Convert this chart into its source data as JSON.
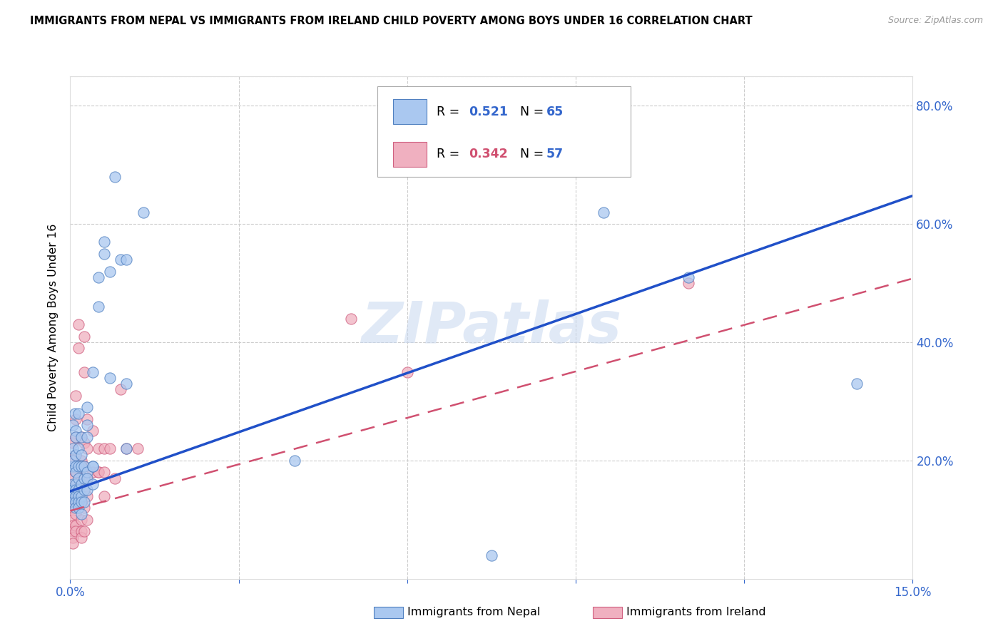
{
  "title": "IMMIGRANTS FROM NEPAL VS IMMIGRANTS FROM IRELAND CHILD POVERTY AMONG BOYS UNDER 16 CORRELATION CHART",
  "source": "Source: ZipAtlas.com",
  "ylabel": "Child Poverty Among Boys Under 16",
  "watermark": "ZIPatlas",
  "nepal_face_color": "#aac8f0",
  "nepal_edge_color": "#5080c0",
  "ireland_face_color": "#f0b0c0",
  "ireland_edge_color": "#d06080",
  "nepal_line_color": "#2050c8",
  "ireland_line_color": "#d05070",
  "legend_R_nepal": "0.521",
  "legend_N_nepal": "65",
  "legend_R_ireland": "0.342",
  "legend_N_ireland": "57",
  "text_color_blue": "#3366cc",
  "nepal_scatter": [
    [
      0.0005,
      0.22
    ],
    [
      0.0005,
      0.19
    ],
    [
      0.0005,
      0.26
    ],
    [
      0.0005,
      0.16
    ],
    [
      0.0005,
      0.15
    ],
    [
      0.0005,
      0.14
    ],
    [
      0.0005,
      0.13
    ],
    [
      0.0005,
      0.2
    ],
    [
      0.0008,
      0.28
    ],
    [
      0.001,
      0.25
    ],
    [
      0.001,
      0.24
    ],
    [
      0.001,
      0.21
    ],
    [
      0.001,
      0.19
    ],
    [
      0.001,
      0.18
    ],
    [
      0.001,
      0.16
    ],
    [
      0.001,
      0.15
    ],
    [
      0.001,
      0.14
    ],
    [
      0.001,
      0.13
    ],
    [
      0.001,
      0.12
    ],
    [
      0.0015,
      0.28
    ],
    [
      0.0015,
      0.22
    ],
    [
      0.0015,
      0.19
    ],
    [
      0.0015,
      0.17
    ],
    [
      0.0015,
      0.15
    ],
    [
      0.0015,
      0.14
    ],
    [
      0.0015,
      0.13
    ],
    [
      0.0015,
      0.12
    ],
    [
      0.002,
      0.24
    ],
    [
      0.002,
      0.21
    ],
    [
      0.002,
      0.19
    ],
    [
      0.002,
      0.16
    ],
    [
      0.002,
      0.14
    ],
    [
      0.002,
      0.13
    ],
    [
      0.002,
      0.11
    ],
    [
      0.0025,
      0.19
    ],
    [
      0.0025,
      0.17
    ],
    [
      0.0025,
      0.15
    ],
    [
      0.0025,
      0.13
    ],
    [
      0.003,
      0.18
    ],
    [
      0.003,
      0.15
    ],
    [
      0.003,
      0.17
    ],
    [
      0.003,
      0.26
    ],
    [
      0.003,
      0.29
    ],
    [
      0.003,
      0.24
    ],
    [
      0.004,
      0.19
    ],
    [
      0.004,
      0.16
    ],
    [
      0.004,
      0.35
    ],
    [
      0.004,
      0.19
    ],
    [
      0.005,
      0.51
    ],
    [
      0.005,
      0.46
    ],
    [
      0.006,
      0.55
    ],
    [
      0.006,
      0.57
    ],
    [
      0.007,
      0.52
    ],
    [
      0.007,
      0.34
    ],
    [
      0.008,
      0.68
    ],
    [
      0.009,
      0.54
    ],
    [
      0.01,
      0.54
    ],
    [
      0.01,
      0.33
    ],
    [
      0.01,
      0.22
    ],
    [
      0.013,
      0.62
    ],
    [
      0.04,
      0.2
    ],
    [
      0.075,
      0.04
    ],
    [
      0.095,
      0.62
    ],
    [
      0.11,
      0.51
    ],
    [
      0.14,
      0.33
    ]
  ],
  "ireland_scatter": [
    [
      0.0005,
      0.23
    ],
    [
      0.0005,
      0.2
    ],
    [
      0.0005,
      0.17
    ],
    [
      0.0005,
      0.14
    ],
    [
      0.0005,
      0.12
    ],
    [
      0.0005,
      0.1
    ],
    [
      0.0005,
      0.09
    ],
    [
      0.0005,
      0.08
    ],
    [
      0.0005,
      0.07
    ],
    [
      0.0005,
      0.06
    ],
    [
      0.001,
      0.31
    ],
    [
      0.001,
      0.27
    ],
    [
      0.001,
      0.24
    ],
    [
      0.001,
      0.21
    ],
    [
      0.001,
      0.18
    ],
    [
      0.001,
      0.15
    ],
    [
      0.001,
      0.13
    ],
    [
      0.001,
      0.11
    ],
    [
      0.001,
      0.09
    ],
    [
      0.001,
      0.08
    ],
    [
      0.0015,
      0.43
    ],
    [
      0.0015,
      0.39
    ],
    [
      0.002,
      0.24
    ],
    [
      0.002,
      0.2
    ],
    [
      0.002,
      0.17
    ],
    [
      0.002,
      0.13
    ],
    [
      0.002,
      0.1
    ],
    [
      0.002,
      0.08
    ],
    [
      0.002,
      0.07
    ],
    [
      0.0025,
      0.41
    ],
    [
      0.0025,
      0.35
    ],
    [
      0.0025,
      0.23
    ],
    [
      0.0025,
      0.19
    ],
    [
      0.0025,
      0.15
    ],
    [
      0.0025,
      0.12
    ],
    [
      0.0025,
      0.08
    ],
    [
      0.003,
      0.27
    ],
    [
      0.003,
      0.22
    ],
    [
      0.003,
      0.17
    ],
    [
      0.003,
      0.14
    ],
    [
      0.003,
      0.1
    ],
    [
      0.004,
      0.25
    ],
    [
      0.004,
      0.18
    ],
    [
      0.005,
      0.22
    ],
    [
      0.005,
      0.18
    ],
    [
      0.005,
      0.18
    ],
    [
      0.006,
      0.22
    ],
    [
      0.006,
      0.18
    ],
    [
      0.006,
      0.14
    ],
    [
      0.007,
      0.22
    ],
    [
      0.008,
      0.17
    ],
    [
      0.009,
      0.32
    ],
    [
      0.01,
      0.22
    ],
    [
      0.012,
      0.22
    ],
    [
      0.05,
      0.44
    ],
    [
      0.06,
      0.35
    ],
    [
      0.11,
      0.5
    ]
  ],
  "xmin": 0.0,
  "xmax": 0.15,
  "ymin": 0.0,
  "ymax": 0.85,
  "nepal_line_x0": 0.0,
  "nepal_line_y0": 0.148,
  "nepal_line_x1": 0.15,
  "nepal_line_y1": 0.648,
  "ireland_line_x0": 0.0,
  "ireland_line_y0": 0.115,
  "ireland_line_x1": 0.15,
  "ireland_line_y1": 0.508
}
